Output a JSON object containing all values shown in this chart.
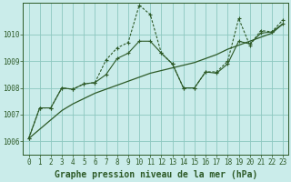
{
  "title": "Graphe pression niveau de la mer (hPa)",
  "background_color": "#caecea",
  "grid_color": "#8cc8c0",
  "line_color": "#2d5a27",
  "xlim": [
    -0.5,
    23.5
  ],
  "ylim": [
    1005.5,
    1011.2
  ],
  "yticks": [
    1006,
    1007,
    1008,
    1009,
    1010
  ],
  "xticks": [
    0,
    1,
    2,
    3,
    4,
    5,
    6,
    7,
    8,
    9,
    10,
    11,
    12,
    13,
    14,
    15,
    16,
    17,
    18,
    19,
    20,
    21,
    22,
    23
  ],
  "series_trend_x": [
    0,
    1,
    2,
    3,
    4,
    5,
    6,
    7,
    8,
    9,
    10,
    11,
    12,
    13,
    14,
    15,
    16,
    17,
    18,
    19,
    20,
    21,
    22,
    23
  ],
  "series_trend_y": [
    1006.1,
    1006.45,
    1006.8,
    1007.15,
    1007.4,
    1007.6,
    1007.8,
    1007.95,
    1008.1,
    1008.25,
    1008.4,
    1008.55,
    1008.65,
    1008.75,
    1008.85,
    1008.95,
    1009.1,
    1009.25,
    1009.45,
    1009.6,
    1009.75,
    1009.9,
    1010.05,
    1010.4
  ],
  "series1_x": [
    0,
    1,
    2,
    3,
    4,
    5,
    6,
    7,
    8,
    9,
    10,
    11,
    12,
    13,
    14,
    15,
    16,
    17,
    18,
    19,
    20,
    21,
    22,
    23
  ],
  "series1_y": [
    1006.1,
    1007.25,
    1007.25,
    1008.0,
    1007.95,
    1008.15,
    1008.2,
    1008.5,
    1009.1,
    1009.3,
    1009.75,
    1009.75,
    1009.3,
    1008.9,
    1008.0,
    1008.0,
    1008.6,
    1008.55,
    1008.9,
    1009.75,
    1009.65,
    1010.05,
    1010.1,
    1010.4
  ],
  "series2_x": [
    0,
    1,
    2,
    3,
    4,
    5,
    6,
    7,
    8,
    9,
    10,
    11,
    12,
    13,
    14,
    15,
    16,
    17,
    18,
    19,
    20,
    21,
    22,
    23
  ],
  "series2_y": [
    1006.1,
    1007.25,
    1007.25,
    1008.0,
    1007.95,
    1008.15,
    1008.2,
    1009.05,
    1009.5,
    1009.7,
    1011.1,
    1010.75,
    1009.3,
    1008.9,
    1008.0,
    1008.0,
    1008.6,
    1008.6,
    1009.0,
    1010.6,
    1009.6,
    1010.15,
    1010.1,
    1010.55
  ],
  "title_fontsize": 7.0,
  "tick_fontsize": 5.5
}
